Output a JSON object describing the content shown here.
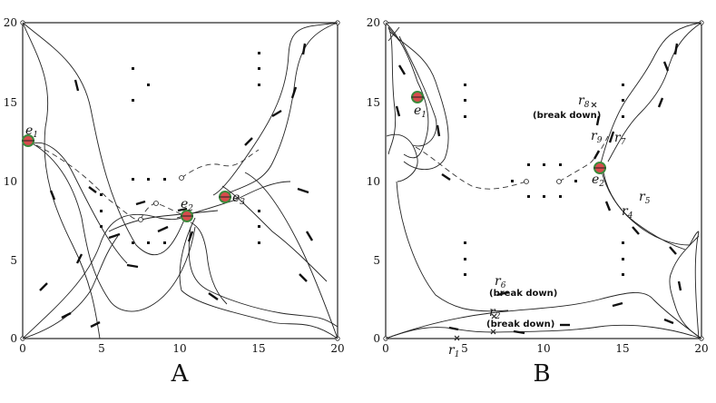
{
  "panels": {
    "A": {
      "label": "A",
      "ticks": {
        "x": [
          "0",
          "5",
          "10",
          "15",
          "20"
        ],
        "y": [
          "0",
          "5",
          "10",
          "15",
          "20"
        ]
      },
      "events": [
        {
          "id": "e1",
          "text": "e",
          "sub": "1"
        },
        {
          "id": "e2",
          "text": "e",
          "sub": "2"
        },
        {
          "id": "e3",
          "text": "e",
          "sub": "3"
        }
      ]
    },
    "B": {
      "label": "B",
      "ticks": {
        "x": [
          "0",
          "5",
          "10",
          "15",
          "20"
        ],
        "y": [
          "0",
          "5",
          "10",
          "15",
          "20"
        ]
      },
      "events": [
        {
          "id": "e1",
          "text": "e",
          "sub": "1"
        },
        {
          "id": "e2",
          "text": "e",
          "sub": "2"
        }
      ],
      "robots": [
        {
          "id": "r1",
          "text": "r",
          "sub": "1"
        },
        {
          "id": "r2",
          "text": "r",
          "sub": "2"
        },
        {
          "id": "r4",
          "text": "r",
          "sub": "4"
        },
        {
          "id": "r5",
          "text": "r",
          "sub": "5"
        },
        {
          "id": "r6",
          "text": "r",
          "sub": "6"
        },
        {
          "id": "r7",
          "text": "r",
          "sub": "7"
        },
        {
          "id": "r8",
          "text": "r",
          "sub": "8"
        },
        {
          "id": "r9",
          "text": "r",
          "sub": "9"
        }
      ],
      "notes": {
        "break_down": "(break down)"
      }
    }
  },
  "colors": {
    "line": "#222222",
    "event_fill": "#d84c4c",
    "event_ring": "#3c8a3c"
  }
}
